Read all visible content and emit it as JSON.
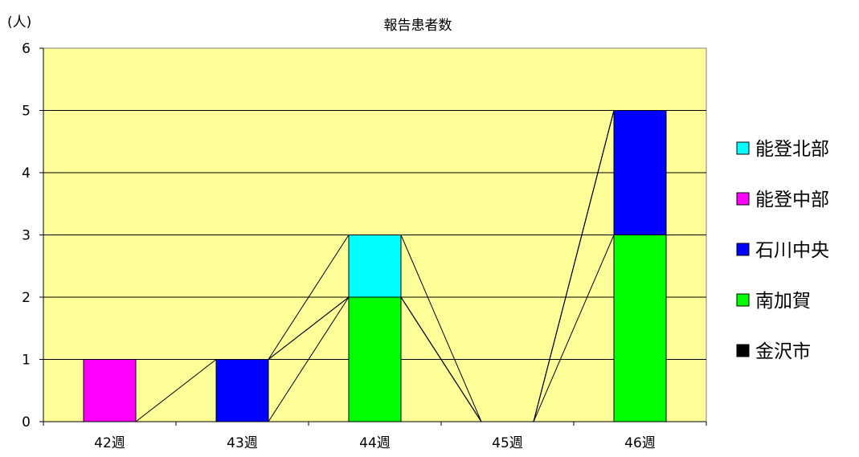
{
  "chart_data": {
    "type": "bar",
    "stacked": true,
    "title": "報告患者数",
    "ylabel": "(人)",
    "xlabel": "",
    "ylim": [
      0,
      6
    ],
    "yticks": [
      0,
      1,
      2,
      3,
      4,
      5,
      6
    ],
    "grid": true,
    "series_lines": true,
    "legend_position": "right",
    "categories": [
      "42週",
      "43週",
      "44週",
      "45週",
      "46週"
    ],
    "series": [
      {
        "name": "金沢市",
        "color": "#000000",
        "values": [
          0,
          0,
          0,
          0,
          0
        ]
      },
      {
        "name": "南加賀",
        "color": "#00ff00",
        "values": [
          0,
          0,
          2,
          0,
          3
        ]
      },
      {
        "name": "石川中央",
        "color": "#0000ff",
        "values": [
          0,
          1,
          0,
          0,
          2
        ]
      },
      {
        "name": "能登中部",
        "color": "#ff00ff",
        "values": [
          1,
          0,
          0,
          0,
          0
        ]
      },
      {
        "name": "能登北部",
        "color": "#00ffff",
        "values": [
          0,
          0,
          1,
          0,
          0
        ]
      }
    ],
    "plot_background": "#ffff99"
  }
}
